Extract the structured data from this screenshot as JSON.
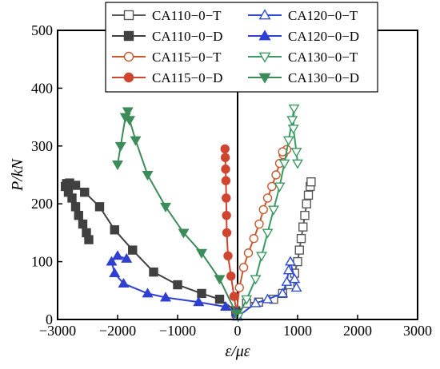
{
  "chart_data": {
    "type": "line",
    "title": "",
    "xlabel": "ε/με",
    "ylabel": "P/kN",
    "xlim": [
      -3000,
      3000
    ],
    "ylim": [
      0,
      500
    ],
    "xticks": [
      -3000,
      -2000,
      -1000,
      0,
      1000,
      2000,
      3000
    ],
    "yticks": [
      0,
      100,
      200,
      300,
      400,
      500
    ],
    "xtick_labels": [
      "−3000",
      "−2000",
      "−1000",
      "0",
      "1000",
      "2000",
      "3000"
    ],
    "ytick_labels": [
      "0",
      "100",
      "200",
      "300",
      "400",
      "500"
    ],
    "grid": false,
    "legend_position": "top",
    "series": [
      {
        "name": "CA110−0−T",
        "color": "#595959",
        "marker": "square",
        "filled": false,
        "points": [
          [
            -20,
            10
          ],
          [
            150,
            28
          ],
          [
            350,
            30
          ],
          [
            600,
            35
          ],
          [
            750,
            45
          ],
          [
            870,
            60
          ],
          [
            950,
            80
          ],
          [
            1000,
            100
          ],
          [
            1030,
            120
          ],
          [
            1060,
            140
          ],
          [
            1090,
            160
          ],
          [
            1120,
            180
          ],
          [
            1150,
            200
          ],
          [
            1180,
            215
          ],
          [
            1210,
            230
          ],
          [
            1225,
            238
          ]
        ]
      },
      {
        "name": "CA110−0−D",
        "color": "#404040",
        "marker": "square",
        "filled": true,
        "points": [
          [
            -30,
            15
          ],
          [
            -300,
            35
          ],
          [
            -600,
            45
          ],
          [
            -1000,
            60
          ],
          [
            -1400,
            82
          ],
          [
            -1750,
            120
          ],
          [
            -2050,
            155
          ],
          [
            -2300,
            195
          ],
          [
            -2550,
            220
          ],
          [
            -2700,
            232
          ],
          [
            -2800,
            236
          ],
          [
            -2850,
            235
          ],
          [
            -2870,
            230
          ],
          [
            -2820,
            220
          ],
          [
            -2760,
            210
          ],
          [
            -2700,
            195
          ],
          [
            -2650,
            180
          ],
          [
            -2580,
            165
          ],
          [
            -2520,
            150
          ],
          [
            -2480,
            138
          ]
        ]
      },
      {
        "name": "CA115−0−T",
        "color": "#c8592f",
        "marker": "circle",
        "filled": false,
        "points": [
          [
            -20,
            10
          ],
          [
            30,
            55
          ],
          [
            100,
            90
          ],
          [
            180,
            115
          ],
          [
            270,
            140
          ],
          [
            360,
            165
          ],
          [
            430,
            190
          ],
          [
            500,
            210
          ],
          [
            570,
            230
          ],
          [
            640,
            250
          ],
          [
            700,
            270
          ],
          [
            760,
            285
          ],
          [
            800,
            292
          ],
          [
            820,
            294
          ],
          [
            750,
            290
          ]
        ]
      },
      {
        "name": "CA115−0−D",
        "color": "#d04530",
        "marker": "circle",
        "filled": true,
        "points": [
          [
            -10,
            8
          ],
          [
            -60,
            40
          ],
          [
            -110,
            75
          ],
          [
            -160,
            110
          ],
          [
            -180,
            150
          ],
          [
            -185,
            180
          ],
          [
            -190,
            210
          ],
          [
            -195,
            240
          ],
          [
            -200,
            260
          ],
          [
            -205,
            280
          ],
          [
            -210,
            295
          ]
        ]
      },
      {
        "name": "CA120−0−T",
        "color": "#2e4bd6",
        "marker": "triangle-up",
        "filled": false,
        "points": [
          [
            0,
            5
          ],
          [
            300,
            28
          ],
          [
            500,
            35
          ],
          [
            750,
            45
          ],
          [
            820,
            65
          ],
          [
            850,
            85
          ],
          [
            880,
            100
          ],
          [
            950,
            70
          ],
          [
            980,
            55
          ]
        ]
      },
      {
        "name": "CA120−0−D",
        "color": "#2e3fd1",
        "marker": "triangle-up",
        "filled": true,
        "points": [
          [
            -20,
            12
          ],
          [
            -200,
            22
          ],
          [
            -650,
            30
          ],
          [
            -1200,
            38
          ],
          [
            -1500,
            45
          ],
          [
            -1900,
            62
          ],
          [
            -2050,
            80
          ],
          [
            -2100,
            100
          ],
          [
            -2000,
            110
          ],
          [
            -1850,
            105
          ]
        ]
      },
      {
        "name": "CA130−0−T",
        "color": "#3a9a62",
        "marker": "triangle-down",
        "filled": false,
        "points": [
          [
            10,
            5
          ],
          [
            150,
            35
          ],
          [
            300,
            70
          ],
          [
            400,
            110
          ],
          [
            500,
            150
          ],
          [
            600,
            190
          ],
          [
            700,
            230
          ],
          [
            780,
            270
          ],
          [
            850,
            310
          ],
          [
            910,
            345
          ],
          [
            940,
            365
          ],
          [
            930,
            330
          ],
          [
            980,
            290
          ],
          [
            1000,
            270
          ]
        ]
      },
      {
        "name": "CA130−0−D",
        "color": "#3c8c5a",
        "marker": "triangle-down",
        "filled": true,
        "points": [
          [
            -20,
            10
          ],
          [
            -300,
            70
          ],
          [
            -600,
            115
          ],
          [
            -900,
            150
          ],
          [
            -1200,
            195
          ],
          [
            -1500,
            250
          ],
          [
            -1700,
            310
          ],
          [
            -1800,
            345
          ],
          [
            -1830,
            360
          ],
          [
            -1870,
            350
          ],
          [
            -1950,
            300
          ],
          [
            -2000,
            268
          ]
        ]
      }
    ]
  }
}
